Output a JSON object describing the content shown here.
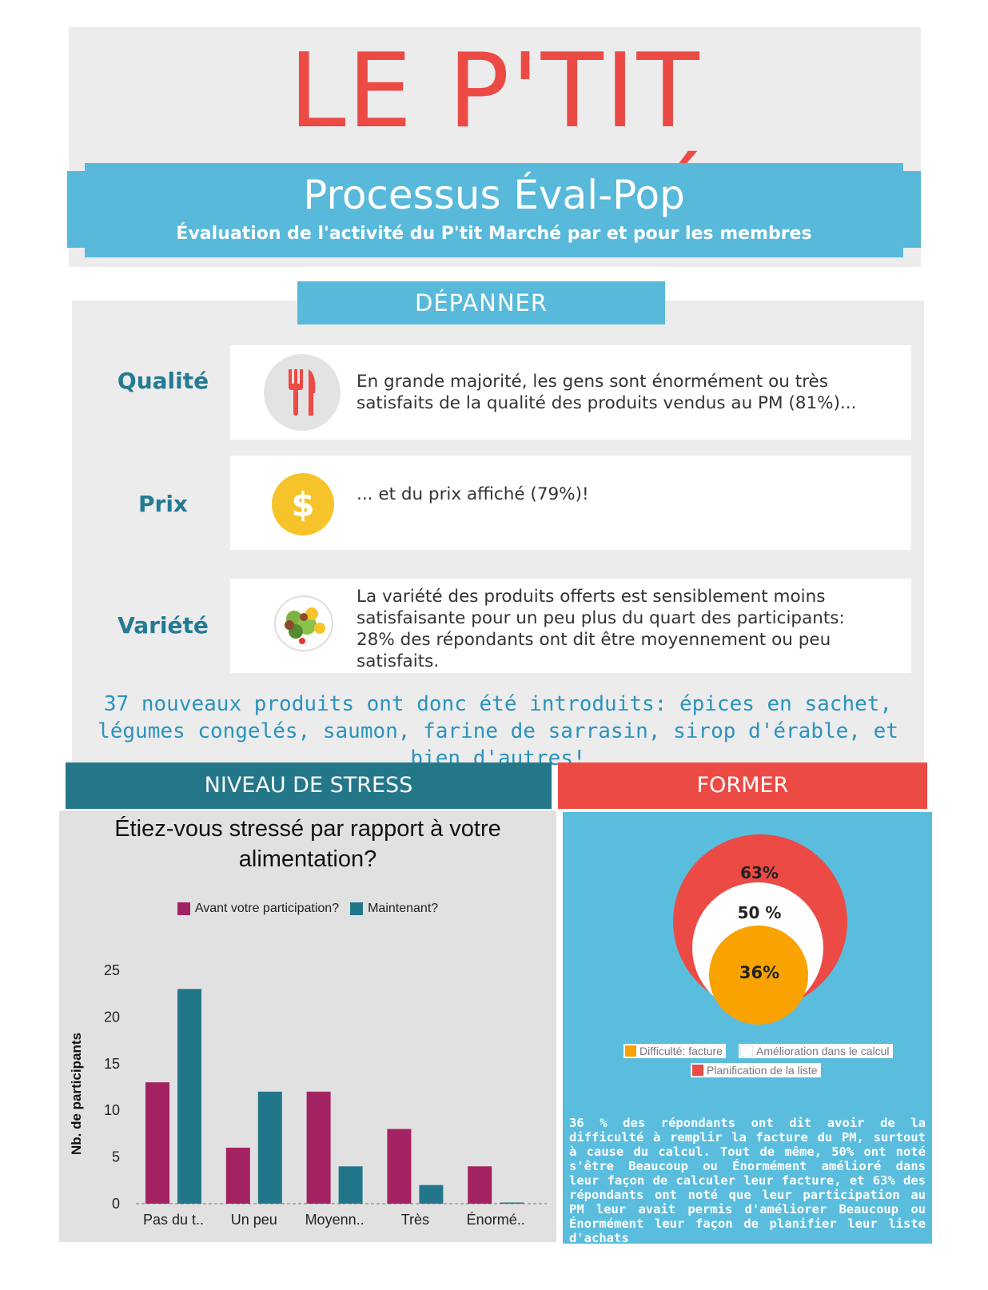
{
  "header": {
    "title": "LE P'TIT MARCHÉ",
    "banner_title": "Processus Éval-Pop",
    "banner_subtitle": "Évaluation de l'activité du P'tit Marché par et pour les membres"
  },
  "depanner": {
    "heading": "DÉPANNER",
    "rows": [
      {
        "label": "Qualité",
        "icon": "fork-knife-icon",
        "text": "En grande majorité, les gens sont énormément ou très satisfaits de la qualité des produits vendus au PM (81%)..."
      },
      {
        "label": "Prix",
        "icon": "dollar-coin-icon",
        "text": "... et du prix affiché (79%)!"
      },
      {
        "label": "Variété",
        "icon": "salad-plate-icon",
        "text": "La variété des produits offerts est sensiblement moins satisfaisante pour un peu plus du quart des participants: 28% des répondants ont dit être moyennement ou peu satisfaits."
      }
    ],
    "note": "37 nouveaux produits ont donc été introduits: épices en sachet, légumes congelés, saumon, farine de sarrasin, sirop d'érable, et bien d'autres!"
  },
  "stress": {
    "heading": "NIVEAU DE STRESS"
  },
  "chart_data": {
    "type": "bar",
    "title": "Étiez-vous stressé par rapport à votre alimentation?",
    "categories": [
      "Pas du t..",
      "Un peu",
      "Moyenn..",
      "Très",
      "Énormé.."
    ],
    "series": [
      {
        "name": "Avant votre participation?",
        "color": "#a32362",
        "values": [
          13,
          6,
          12,
          8,
          4
        ]
      },
      {
        "name": "Maintenant?",
        "color": "#227689",
        "values": [
          23,
          12,
          4,
          2,
          0
        ]
      }
    ],
    "xlabel": "",
    "ylabel": "Nb. de participants",
    "ylim": [
      0,
      25
    ],
    "yticks": [
      0,
      5,
      10,
      15,
      20,
      25
    ],
    "legend_position": "top",
    "grid": false
  },
  "former": {
    "heading": "FORMER",
    "circles": [
      {
        "label": "63%",
        "name": "Planification de la liste",
        "color": "#ec4a45"
      },
      {
        "label": "50 %",
        "name": "Amélioration dans le calcul",
        "color": "#ffffff"
      },
      {
        "label": "36%",
        "name": "Difficulté: facture",
        "color": "#f9a200"
      }
    ],
    "text": "36 % des répondants ont dit avoir de la difficulté à remplir la facture du PM, surtout à cause du calcul. Tout de même, 50% ont noté s'être Beaucoup ou Énormément amélioré dans leur façon de calculer leur facture, et 63% des répondants ont noté que leur participation au PM leur avait permis d'améliorer Beaucoup ou Énormément leur façon de planifier leur liste d'achats"
  }
}
